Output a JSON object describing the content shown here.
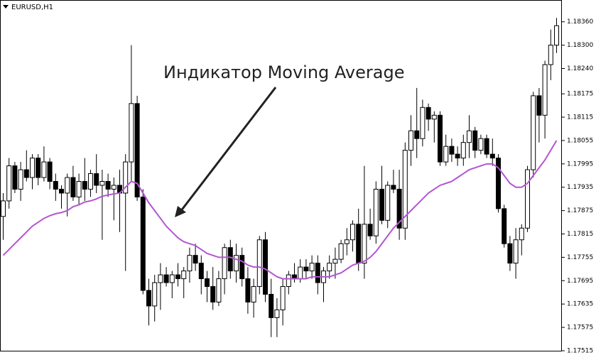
{
  "chart_data": {
    "type": "candlestick",
    "title": "EURUSD,H1",
    "annotation": "Индикатор Moving Average",
    "open": [
      1.1786,
      1.179,
      1.1799,
      1.1793,
      1.1798,
      1.1796,
      1.1801,
      1.1796,
      1.18,
      1.1795,
      1.1793,
      1.1792,
      1.1796,
      1.1791,
      1.1795,
      1.1793,
      1.1797,
      1.1794,
      1.1795,
      1.1793,
      1.1794,
      1.1792,
      1.18,
      1.1815,
      1.1791,
      1.1767,
      1.1763,
      1.1769,
      1.1771,
      1.1769,
      1.1771,
      1.177,
      1.1772,
      1.1776,
      1.1774,
      1.177,
      1.1768,
      1.1764,
      1.177,
      1.1778,
      1.1772,
      1.1776,
      1.177,
      1.1764,
      1.1768,
      1.178,
      1.1766,
      1.176,
      1.1762,
      1.1768,
      1.1771,
      1.177,
      1.1773,
      1.1772,
      1.1774,
      1.1769,
      1.1772,
      1.1774,
      1.1775,
      1.1779,
      1.178,
      1.1784,
      1.1774,
      1.1784,
      1.1781,
      1.1793,
      1.1785,
      1.1794,
      1.1793,
      1.1783,
      1.1803,
      1.1808,
      1.1806,
      1.1814,
      1.1811,
      1.1812,
      1.18,
      1.1804,
      1.1802,
      1.1801,
      1.1805,
      1.1808,
      1.1803,
      1.1806,
      1.1802,
      1.1801,
      1.1788,
      1.1779,
      1.1774,
      1.178,
      1.1783,
      1.1798,
      1.1817,
      1.1812,
      1.1825,
      1.183
    ],
    "high": [
      1.1792,
      1.1801,
      1.18,
      1.18,
      1.1803,
      1.1802,
      1.1802,
      1.1804,
      1.1801,
      1.1797,
      1.1794,
      1.1797,
      1.1799,
      1.1797,
      1.1801,
      1.1798,
      1.1802,
      1.1798,
      1.1797,
      1.1796,
      1.1798,
      1.1802,
      1.183,
      1.1817,
      1.1793,
      1.177,
      1.1771,
      1.1774,
      1.1773,
      1.1772,
      1.1774,
      1.1773,
      1.1778,
      1.1779,
      1.1776,
      1.1772,
      1.1773,
      1.1772,
      1.1779,
      1.178,
      1.1779,
      1.1778,
      1.1773,
      1.177,
      1.1781,
      1.1782,
      1.177,
      1.1765,
      1.177,
      1.1772,
      1.1774,
      1.1775,
      1.1775,
      1.1776,
      1.1776,
      1.1773,
      1.1776,
      1.1778,
      1.178,
      1.1783,
      1.1785,
      1.1788,
      1.1799,
      1.1788,
      1.1795,
      1.1799,
      1.1795,
      1.1798,
      1.1798,
      1.1805,
      1.1812,
      1.1819,
      1.1816,
      1.1815,
      1.1813,
      1.1813,
      1.1807,
      1.1806,
      1.1804,
      1.1807,
      1.1812,
      1.1809,
      1.1807,
      1.1807,
      1.1806,
      1.1802,
      1.1789,
      1.1781,
      1.1783,
      1.1784,
      1.1799,
      1.1818,
      1.1819,
      1.1826,
      1.1834,
      1.1837
    ],
    "low": [
      1.178,
      1.1788,
      1.1792,
      1.179,
      1.1795,
      1.1793,
      1.1794,
      1.1795,
      1.1793,
      1.179,
      1.1788,
      1.1786,
      1.179,
      1.1789,
      1.179,
      1.1791,
      1.1792,
      1.178,
      1.1791,
      1.1785,
      1.1782,
      1.1772,
      1.1795,
      1.179,
      1.1766,
      1.1758,
      1.1759,
      1.1762,
      1.1768,
      1.1765,
      1.1768,
      1.1765,
      1.1769,
      1.1772,
      1.1766,
      1.1764,
      1.1762,
      1.1763,
      1.1766,
      1.177,
      1.1769,
      1.1768,
      1.1761,
      1.176,
      1.1766,
      1.1764,
      1.1755,
      1.1755,
      1.1758,
      1.1766,
      1.1769,
      1.1769,
      1.177,
      1.177,
      1.1766,
      1.1764,
      1.177,
      1.177,
      1.1774,
      1.1776,
      1.1777,
      1.1772,
      1.177,
      1.178,
      1.1779,
      1.1784,
      1.1783,
      1.1792,
      1.178,
      1.178,
      1.1799,
      1.1801,
      1.1804,
      1.1808,
      1.1805,
      1.1799,
      1.1799,
      1.18,
      1.1799,
      1.1799,
      1.1801,
      1.1801,
      1.1802,
      1.1801,
      1.1799,
      1.1787,
      1.1778,
      1.1772,
      1.177,
      1.1776,
      1.1782,
      1.1796,
      1.1805,
      1.1806,
      1.1821,
      1.1828
    ],
    "close": [
      1.179,
      1.1799,
      1.1793,
      1.1798,
      1.1796,
      1.1801,
      1.1796,
      1.18,
      1.1795,
      1.1793,
      1.1792,
      1.1796,
      1.1791,
      1.1795,
      1.1793,
      1.1797,
      1.1794,
      1.1795,
      1.1793,
      1.1794,
      1.1792,
      1.18,
      1.1815,
      1.1791,
      1.1767,
      1.1763,
      1.1769,
      1.1771,
      1.1769,
      1.1771,
      1.177,
      1.1772,
      1.1776,
      1.1774,
      1.177,
      1.1768,
      1.1764,
      1.177,
      1.1778,
      1.1772,
      1.1776,
      1.177,
      1.1764,
      1.1768,
      1.178,
      1.1766,
      1.176,
      1.1762,
      1.1768,
      1.1771,
      1.177,
      1.1773,
      1.1772,
      1.1774,
      1.1769,
      1.1772,
      1.1774,
      1.1775,
      1.1779,
      1.178,
      1.1784,
      1.1774,
      1.1784,
      1.1781,
      1.1793,
      1.1785,
      1.1794,
      1.1793,
      1.1783,
      1.1803,
      1.1808,
      1.1806,
      1.1814,
      1.1811,
      1.1812,
      1.18,
      1.1804,
      1.1802,
      1.1801,
      1.1805,
      1.1808,
      1.1803,
      1.1806,
      1.1802,
      1.1801,
      1.1788,
      1.1779,
      1.1774,
      1.178,
      1.1783,
      1.1798,
      1.1817,
      1.1812,
      1.1825,
      1.183,
      1.1835
    ],
    "ma_values": [
      1.1776,
      1.17775,
      1.1779,
      1.17805,
      1.1782,
      1.17835,
      1.17845,
      1.17855,
      1.17862,
      1.17867,
      1.1787,
      1.17875,
      1.17885,
      1.1789,
      1.17897,
      1.179,
      1.17905,
      1.17912,
      1.17915,
      1.17918,
      1.1792,
      1.17935,
      1.1795,
      1.17945,
      1.1792,
      1.17895,
      1.17875,
      1.17855,
      1.17835,
      1.1782,
      1.17805,
      1.17795,
      1.1779,
      1.17785,
      1.17775,
      1.17765,
      1.1776,
      1.17755,
      1.17755,
      1.17755,
      1.1775,
      1.17745,
      1.17735,
      1.1773,
      1.1773,
      1.17725,
      1.17715,
      1.17705,
      1.177,
      1.177,
      1.177,
      1.177,
      1.177,
      1.17705,
      1.17705,
      1.17705,
      1.17705,
      1.1771,
      1.17715,
      1.17725,
      1.17735,
      1.1774,
      1.17745,
      1.17755,
      1.1777,
      1.1779,
      1.1781,
      1.1783,
      1.17845,
      1.1786,
      1.17875,
      1.1789,
      1.17905,
      1.1792,
      1.1793,
      1.1794,
      1.17945,
      1.1795,
      1.1796,
      1.1797,
      1.1798,
      1.17985,
      1.1799,
      1.17995,
      1.17995,
      1.17985,
      1.17965,
      1.17945,
      1.17935,
      1.17935,
      1.17945,
      1.17965,
      1.17985,
      1.18005,
      1.1803,
      1.18055
    ],
    "ma_color": "#b455d2",
    "up_color": "#ffffff",
    "down_color": "#000000",
    "ylim": [
      1.17515,
      1.18416
    ],
    "yticks": [
      {
        "value": 1.1836,
        "label": "1.18360"
      },
      {
        "value": 1.183,
        "label": "1.18300"
      },
      {
        "value": 1.1824,
        "label": "1.18240"
      },
      {
        "value": 1.18175,
        "label": "1.18175"
      },
      {
        "value": 1.18115,
        "label": "1.18115"
      },
      {
        "value": 1.18055,
        "label": "1.18055"
      },
      {
        "value": 1.17995,
        "label": "1.17995"
      },
      {
        "value": 1.17935,
        "label": "1.17935"
      },
      {
        "value": 1.17875,
        "label": "1.17875"
      },
      {
        "value": 1.17815,
        "label": "1.17815"
      },
      {
        "value": 1.17755,
        "label": "1.17755"
      },
      {
        "value": 1.17695,
        "label": "1.17695"
      },
      {
        "value": 1.17635,
        "label": "1.17635"
      },
      {
        "value": 1.17575,
        "label": "1.17575"
      },
      {
        "value": 1.17515,
        "label": "1.17515"
      }
    ]
  }
}
